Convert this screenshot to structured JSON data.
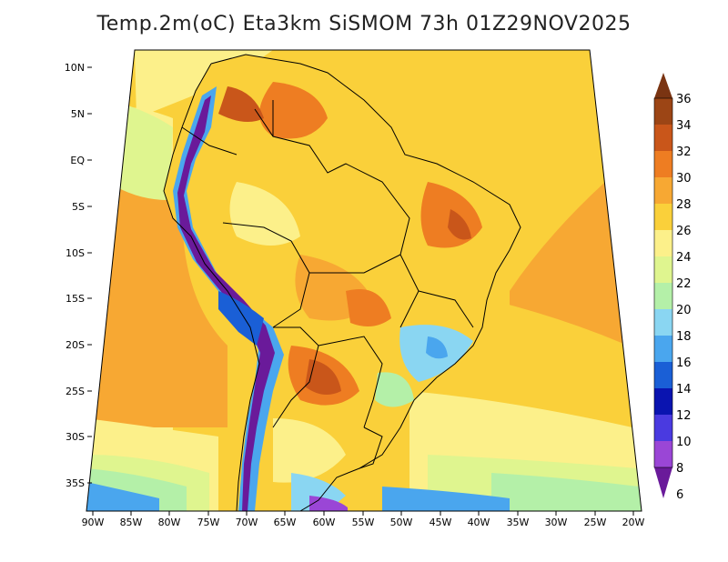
{
  "title": "Temp.2m(oC) Eta3km SiSMOM 73h 01Z29NOV2025",
  "axes": {
    "lat_labels": [
      "10N",
      "5N",
      "EQ",
      "5S",
      "10S",
      "15S",
      "20S",
      "25S",
      "30S",
      "35S"
    ],
    "lon_labels": [
      "90W",
      "85W",
      "80W",
      "75W",
      "70W",
      "65W",
      "60W",
      "55W",
      "50W",
      "45W",
      "40W",
      "35W",
      "30W",
      "25W",
      "20W"
    ]
  },
  "colorbar": {
    "labels": [
      "36",
      "34",
      "32",
      "30",
      "28",
      "26",
      "24",
      "22",
      "20",
      "18",
      "16",
      "14",
      "12",
      "10",
      "8",
      "6"
    ],
    "colors": [
      "#7a3412",
      "#9c4515",
      "#c9561a",
      "#ee7d22",
      "#f7a833",
      "#fad03a",
      "#fcf08a",
      "#dff58f",
      "#b4f0a8",
      "#8ad6f2",
      "#4aa6ee",
      "#1a5fd6",
      "#0a14b0",
      "#4a3ae0",
      "#9a46d6",
      "#6a1a9a"
    ]
  },
  "palette": {
    "ocean_warm": "#f7a833",
    "ocean_mid": "#fad03a",
    "ocean_light": "#fcf08a",
    "ocean_cool": "#dff58f",
    "ocean_cold": "#b4f0a8",
    "land_hot": "#ee7d22",
    "land_very_hot": "#c9561a",
    "andes_cold": "#6a1a9a",
    "andes_blue": "#1a5fd6",
    "border": "#000000"
  }
}
